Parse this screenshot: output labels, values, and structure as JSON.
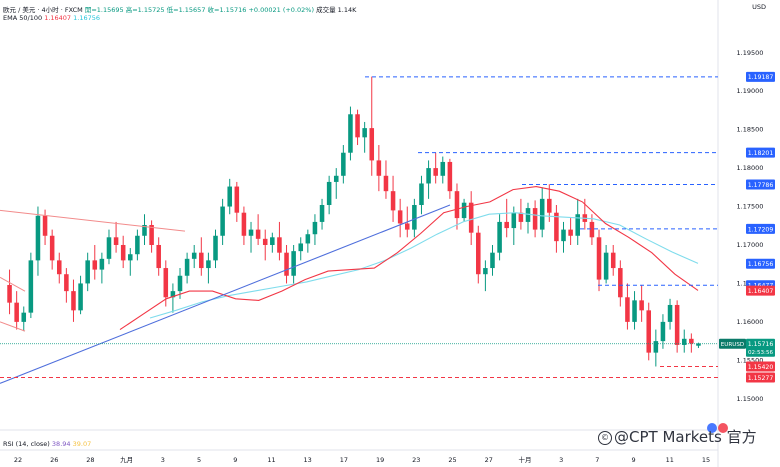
{
  "header": {
    "symbol": "欧元 / 美元 · 4小时 · FXCM",
    "open": "開=1.15695",
    "high": "高=1.15725",
    "low": "低=1.15657",
    "close": "收=1.15716",
    "change": "+0.00021 (+0.02%)",
    "volume": "成交量 1.14K",
    "ema_label": "EMA 50/100",
    "ema50": "1.16407",
    "ema100": "1.16756",
    "rsi_label": "RSI (14, close)",
    "rsi_a": "38.94",
    "rsi_b": "39.07",
    "currency": "USD"
  },
  "watermark": {
    "text": "@CPT Markets 官方"
  },
  "colors": {
    "up": "#089981",
    "down": "#f23645",
    "ema50": "#f23645",
    "ema100": "#7fdcec",
    "trend": "#4f6fdc",
    "badge_blue": "#2962ff",
    "badge_red": "#f23645"
  },
  "chart_data": {
    "type": "candlestick",
    "ylim": [
      1.1475,
      1.199
    ],
    "y_ticks": [
      "1.19500",
      "1.19000",
      "1.18500",
      "1.18000",
      "1.17500",
      "1.17000",
      "1.16500",
      "1.16000",
      "1.15500",
      "1.15000"
    ],
    "x_ticks": [
      "22",
      "26",
      "28",
      "九月",
      "3",
      "5",
      "9",
      "11",
      "13",
      "17",
      "19",
      "23",
      "25",
      "27",
      "十月",
      "3",
      "7",
      "9",
      "11",
      "15"
    ],
    "candles": [
      [
        1.1648,
        1.1668,
        1.161,
        1.1625
      ],
      [
        1.1625,
        1.164,
        1.159,
        1.16
      ],
      [
        1.16,
        1.162,
        1.1588,
        1.1612
      ],
      [
        1.1612,
        1.169,
        1.1605,
        1.168
      ],
      [
        1.168,
        1.175,
        1.166,
        1.1738
      ],
      [
        1.1738,
        1.1746,
        1.17,
        1.1712
      ],
      [
        1.1712,
        1.172,
        1.1668,
        1.168
      ],
      [
        1.168,
        1.169,
        1.165,
        1.1662
      ],
      [
        1.1662,
        1.167,
        1.1625,
        1.164
      ],
      [
        1.164,
        1.1655,
        1.16,
        1.1615
      ],
      [
        1.1615,
        1.166,
        1.161,
        1.165
      ],
      [
        1.165,
        1.169,
        1.164,
        1.168
      ],
      [
        1.168,
        1.17,
        1.1655,
        1.1668
      ],
      [
        1.1668,
        1.169,
        1.165,
        1.1682
      ],
      [
        1.1682,
        1.172,
        1.1675,
        1.171
      ],
      [
        1.171,
        1.173,
        1.169,
        1.17
      ],
      [
        1.17,
        1.1712,
        1.167,
        1.168
      ],
      [
        1.168,
        1.1696,
        1.166,
        1.1688
      ],
      [
        1.1688,
        1.172,
        1.168,
        1.1712
      ],
      [
        1.1712,
        1.174,
        1.17,
        1.1726
      ],
      [
        1.1726,
        1.1732,
        1.169,
        1.17
      ],
      [
        1.17,
        1.171,
        1.166,
        1.167
      ],
      [
        1.167,
        1.168,
        1.162,
        1.1632
      ],
      [
        1.1632,
        1.165,
        1.1612,
        1.164
      ],
      [
        1.164,
        1.167,
        1.163,
        1.166
      ],
      [
        1.166,
        1.169,
        1.165,
        1.1682
      ],
      [
        1.1682,
        1.17,
        1.167,
        1.169
      ],
      [
        1.169,
        1.171,
        1.166,
        1.167
      ],
      [
        1.167,
        1.169,
        1.165,
        1.168
      ],
      [
        1.168,
        1.172,
        1.167,
        1.1712
      ],
      [
        1.1712,
        1.176,
        1.17,
        1.175
      ],
      [
        1.175,
        1.1786,
        1.174,
        1.1776
      ],
      [
        1.1776,
        1.1782,
        1.173,
        1.1742
      ],
      [
        1.1742,
        1.175,
        1.17,
        1.1712
      ],
      [
        1.1712,
        1.173,
        1.169,
        1.172
      ],
      [
        1.172,
        1.174,
        1.17,
        1.1708
      ],
      [
        1.1708,
        1.172,
        1.168,
        1.17
      ],
      [
        1.17,
        1.1716,
        1.169,
        1.171
      ],
      [
        1.171,
        1.173,
        1.168,
        1.169
      ],
      [
        1.169,
        1.17,
        1.165,
        1.166
      ],
      [
        1.166,
        1.17,
        1.165,
        1.1692
      ],
      [
        1.1692,
        1.171,
        1.168,
        1.1702
      ],
      [
        1.1702,
        1.172,
        1.169,
        1.1714
      ],
      [
        1.1714,
        1.174,
        1.17,
        1.173
      ],
      [
        1.173,
        1.176,
        1.172,
        1.1752
      ],
      [
        1.1752,
        1.179,
        1.174,
        1.1782
      ],
      [
        1.1782,
        1.18,
        1.176,
        1.179
      ],
      [
        1.179,
        1.183,
        1.178,
        1.182
      ],
      [
        1.182,
        1.188,
        1.181,
        1.187
      ],
      [
        1.187,
        1.1876,
        1.183,
        1.184
      ],
      [
        1.184,
        1.186,
        1.182,
        1.1852
      ],
      [
        1.1852,
        1.1919,
        1.179,
        1.181
      ],
      [
        1.181,
        1.183,
        1.177,
        1.179
      ],
      [
        1.179,
        1.181,
        1.176,
        1.177
      ],
      [
        1.177,
        1.179,
        1.173,
        1.1745
      ],
      [
        1.1745,
        1.176,
        1.171,
        1.1728
      ],
      [
        1.1728,
        1.175,
        1.171,
        1.172
      ],
      [
        1.172,
        1.176,
        1.171,
        1.1752
      ],
      [
        1.1752,
        1.179,
        1.174,
        1.178
      ],
      [
        1.178,
        1.181,
        1.176,
        1.18
      ],
      [
        1.18,
        1.182,
        1.178,
        1.179
      ],
      [
        1.179,
        1.1815,
        1.178,
        1.1808
      ],
      [
        1.1808,
        1.1812,
        1.176,
        1.177
      ],
      [
        1.177,
        1.178,
        1.172,
        1.1735
      ],
      [
        1.1735,
        1.176,
        1.173,
        1.1755
      ],
      [
        1.1755,
        1.177,
        1.17,
        1.1716
      ],
      [
        1.1716,
        1.1725,
        1.165,
        1.1662
      ],
      [
        1.1662,
        1.168,
        1.164,
        1.167
      ],
      [
        1.167,
        1.17,
        1.166,
        1.169
      ],
      [
        1.169,
        1.174,
        1.168,
        1.173
      ],
      [
        1.173,
        1.176,
        1.171,
        1.1722
      ],
      [
        1.1722,
        1.175,
        1.17,
        1.1742
      ],
      [
        1.1742,
        1.176,
        1.172,
        1.173
      ],
      [
        1.173,
        1.1755,
        1.1715,
        1.1748
      ],
      [
        1.1748,
        1.1758,
        1.171,
        1.172
      ],
      [
        1.172,
        1.1775,
        1.171,
        1.176
      ],
      [
        1.176,
        1.1779,
        1.173,
        1.1742
      ],
      [
        1.1742,
        1.1752,
        1.169,
        1.1705
      ],
      [
        1.1705,
        1.173,
        1.169,
        1.172
      ],
      [
        1.172,
        1.1735,
        1.17,
        1.1712
      ],
      [
        1.1712,
        1.176,
        1.17,
        1.174
      ],
      [
        1.174,
        1.176,
        1.172,
        1.173
      ],
      [
        1.173,
        1.174,
        1.17,
        1.171
      ],
      [
        1.171,
        1.172,
        1.164,
        1.1655
      ],
      [
        1.1655,
        1.17,
        1.165,
        1.169
      ],
      [
        1.169,
        1.17,
        1.166,
        1.167
      ],
      [
        1.167,
        1.168,
        1.162,
        1.1632
      ],
      [
        1.1632,
        1.165,
        1.159,
        1.16
      ],
      [
        1.16,
        1.164,
        1.159,
        1.1628
      ],
      [
        1.1628,
        1.1648,
        1.16,
        1.1615
      ],
      [
        1.1615,
        1.1625,
        1.155,
        1.156
      ],
      [
        1.156,
        1.159,
        1.1542,
        1.1575
      ],
      [
        1.1575,
        1.161,
        1.1565,
        1.16
      ],
      [
        1.16,
        1.163,
        1.159,
        1.1622
      ],
      [
        1.1622,
        1.1628,
        1.156,
        1.157
      ],
      [
        1.157,
        1.159,
        1.156,
        1.1578
      ],
      [
        1.1578,
        1.1585,
        1.156,
        1.1572
      ],
      [
        1.1569,
        1.1573,
        1.1566,
        1.1572
      ]
    ],
    "ema50": [
      1.159,
      1.161,
      1.163,
      1.164,
      1.164,
      1.163,
      1.1628,
      1.164,
      1.1655,
      1.1666,
      1.1668,
      1.167,
      1.169,
      1.1715,
      1.1742,
      1.175,
      1.1756,
      1.1772,
      1.1776,
      1.177,
      1.1756,
      1.1728,
      1.171,
      1.169,
      1.1662,
      1.1641
    ],
    "ema100": [
      1.1605,
      1.1615,
      1.1626,
      1.1634,
      1.164,
      1.1646,
      1.1652,
      1.166,
      1.1668,
      1.168,
      1.1696,
      1.1714,
      1.173,
      1.174,
      1.1742,
      1.1738,
      1.1736,
      1.1734,
      1.1726,
      1.1708,
      1.1691,
      1.1676
    ],
    "levels": [
      {
        "value": "1.19187",
        "color": "#2962ff",
        "dash": true
      },
      {
        "value": "1.18201",
        "color": "#2962ff",
        "dash": true
      },
      {
        "value": "1.17786",
        "color": "#2962ff",
        "dash": true
      },
      {
        "value": "1.17209",
        "color": "#2962ff",
        "dash": true
      },
      {
        "value": "1.16756",
        "color": "#2962ff",
        "dash": false
      },
      {
        "value": "1.16477",
        "color": "#2962ff",
        "dash": true
      },
      {
        "value": "1.16407",
        "color": "#f23645",
        "dash": false
      },
      {
        "value": "1.15420",
        "color": "#f23645",
        "dash": true
      },
      {
        "value": "1.15277",
        "color": "#f23645",
        "dash": true
      }
    ],
    "price_badge": {
      "symbol": "EURUSD",
      "value": "1.15716",
      "countdown": "02:53:56"
    }
  }
}
